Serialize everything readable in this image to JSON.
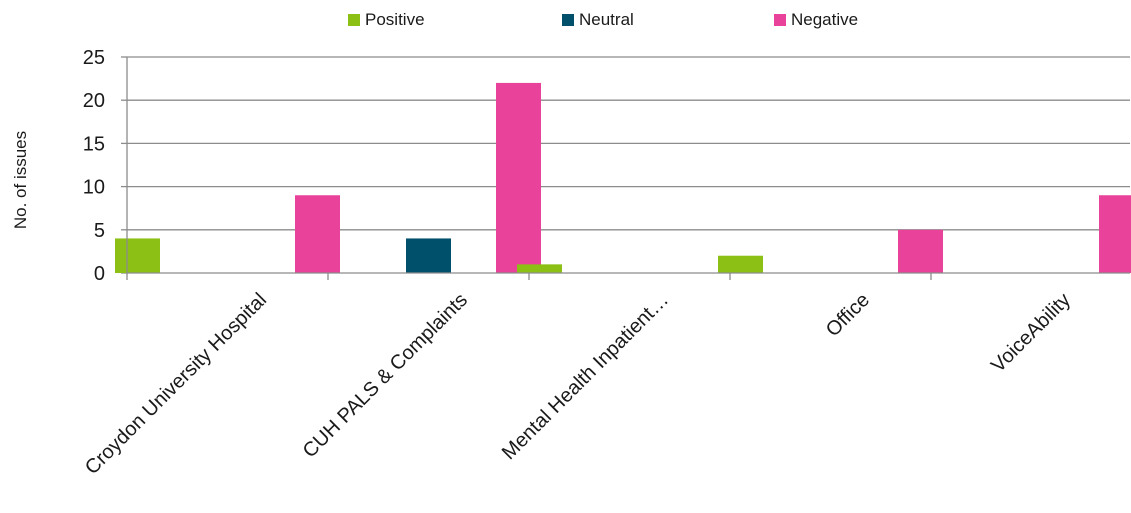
{
  "chart_data": {
    "type": "bar",
    "title": "",
    "xlabel": "",
    "ylabel": "No. of issues",
    "ylim": [
      0,
      25
    ],
    "yticks": [
      0,
      5,
      10,
      15,
      20,
      25
    ],
    "grid": true,
    "legend_position": "top",
    "categories": [
      "Croydon University Hospital",
      "CUH PALS & Complaints",
      "Mental Health Inpatient…",
      "Office",
      "VoiceAbility"
    ],
    "series": [
      {
        "name": "Positive",
        "color": "#8cc014",
        "values": [
          4,
          0,
          1,
          2,
          0
        ]
      },
      {
        "name": "Neutral",
        "color": "#004f6b",
        "values": [
          0,
          4,
          0,
          0,
          0
        ]
      },
      {
        "name": "Negative",
        "color": "#e9429a",
        "values": [
          9,
          22,
          0,
          5,
          9
        ]
      }
    ]
  }
}
